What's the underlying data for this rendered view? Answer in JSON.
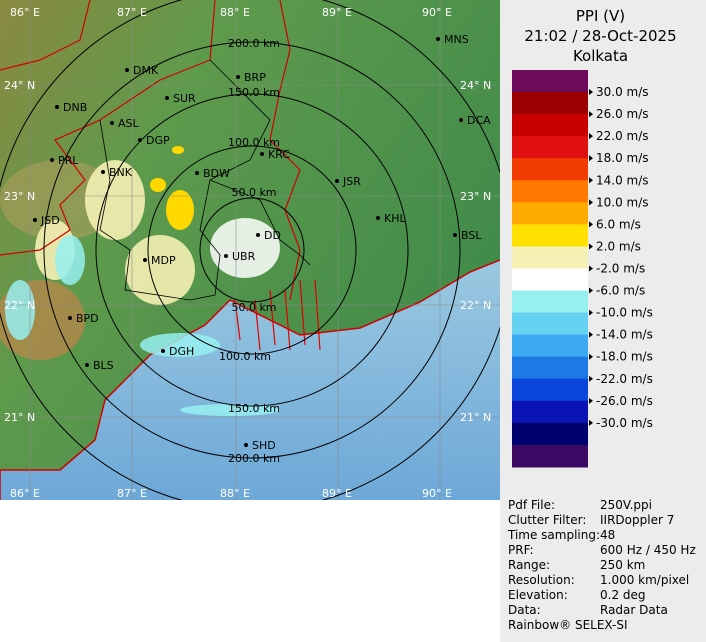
{
  "map": {
    "lon_labels_top": [
      "86° E",
      "87° E",
      "88° E",
      "89° E",
      "90° E"
    ],
    "lon_labels_bottom": [
      "86° E",
      "87° E",
      "88° E",
      "89° E",
      "90° E"
    ],
    "lat_labels_left": [
      "24° N",
      "23° N",
      "22° N",
      "21° N"
    ],
    "lat_labels_right": [
      "24° N",
      "23° N",
      "22° N",
      "21° N"
    ],
    "ring_labels": [
      "200.0 km",
      "150.0 km",
      "100.0 km",
      "50.0 km",
      "50.0 km",
      "100.0 km",
      "150.0 km",
      "200.0 km"
    ],
    "cities": [
      "MNS",
      "DMK",
      "BRP",
      "DNB",
      "SUR",
      "ASL",
      "DCA",
      "DGP",
      "KRC",
      "PRL",
      "BNK",
      "BDW",
      "JSR",
      "KHL",
      "JSD",
      "BSL",
      "DD",
      "UBR",
      "MDP",
      "BPD",
      "DGH",
      "BLS",
      "SHD"
    ]
  },
  "legend": {
    "title": "PPI (V)",
    "time": "21:02 / 28-Oct-2025",
    "station": "Kolkata",
    "colors": [
      "#6e0a5a",
      "#9c0000",
      "#c80000",
      "#e01010",
      "#f03c00",
      "#ff7800",
      "#ffaa00",
      "#ffe000",
      "#f5f0b4",
      "#ffffff",
      "#96f0f0",
      "#64d2f0",
      "#3caaf0",
      "#1e78e6",
      "#0a46dc",
      "#0a14b4",
      "#00006e",
      "#3c0a64"
    ],
    "scale_labels": [
      "30.0 m/s",
      "26.0 m/s",
      "22.0 m/s",
      "18.0 m/s",
      "14.0 m/s",
      "10.0 m/s",
      "6.0 m/s",
      "2.0 m/s",
      "-2.0 m/s",
      "-6.0 m/s",
      "-10.0 m/s",
      "-14.0 m/s",
      "-18.0 m/s",
      "-22.0 m/s",
      "-26.0 m/s",
      "-30.0 m/s"
    ]
  },
  "info": {
    "rows": [
      [
        "Pdf File:",
        "250V.ppi"
      ],
      [
        "Clutter Filter:",
        "IIRDoppler 7"
      ],
      [
        "Time sampling:",
        "48"
      ],
      [
        "PRF:",
        "600 Hz / 450 Hz"
      ],
      [
        "Range:",
        "250 km"
      ],
      [
        "Resolution:",
        "1.000 km/pixel"
      ],
      [
        "Elevation:",
        "0.2 deg"
      ],
      [
        "Data:",
        "Radar Data"
      ]
    ],
    "footer": "Rainbow® SELEX-SI"
  }
}
